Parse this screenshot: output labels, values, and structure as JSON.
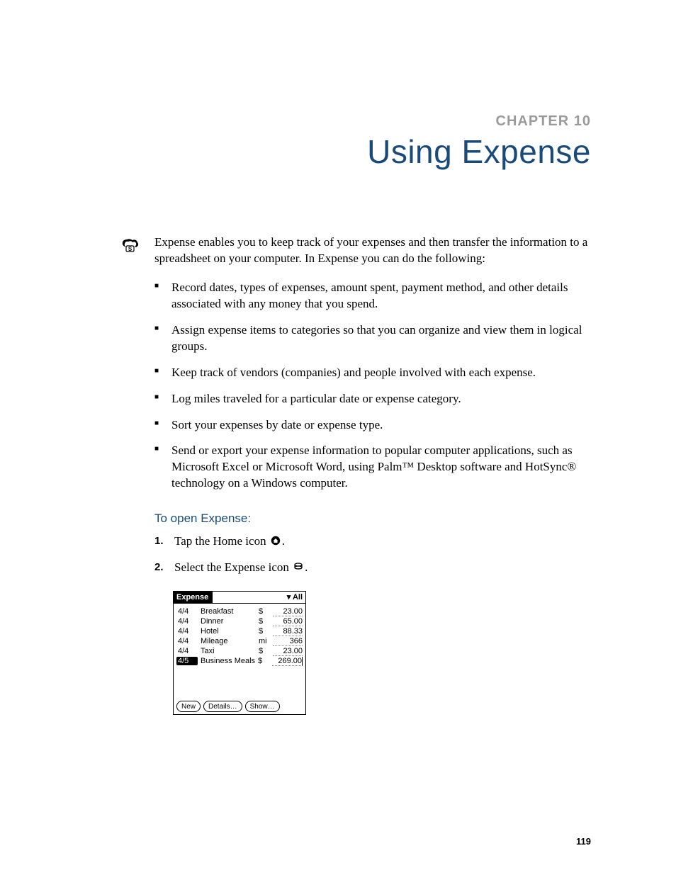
{
  "chapter": {
    "label": "CHAPTER 10",
    "title": "Using Expense",
    "label_color": "#9a9a9a",
    "title_color": "#1a4a7a"
  },
  "intro": "Expense enables you to keep track of your expenses and then transfer the information to a spreadsheet on your computer. In Expense you can do the following:",
  "bullets": [
    "Record dates, types of expenses, amount spent, payment method, and other details associated with any money that you spend.",
    "Assign expense items to categories so that you can organize and view them in logical groups.",
    "Keep track of vendors (companies) and people involved with each expense.",
    "Log miles traveled for a particular date or expense category.",
    "Sort your expenses by date or expense type.",
    "Send or export your expense information to popular computer applications, such as Microsoft Excel or Microsoft Word, using Palm™ Desktop software and HotSync® technology on a Windows computer."
  ],
  "subhead": "To open Expense:",
  "steps": [
    {
      "pre": "Tap the Home icon ",
      "post": "."
    },
    {
      "pre": "Select the Expense icon ",
      "post": "."
    }
  ],
  "screenshot": {
    "title": "Expense",
    "dropdown": "All",
    "rows": [
      {
        "date": "4/4",
        "desc": "Breakfast",
        "unit": "$",
        "amount": "23.00",
        "highlight": false
      },
      {
        "date": "4/4",
        "desc": "Dinner",
        "unit": "$",
        "amount": "65.00",
        "highlight": false
      },
      {
        "date": "4/4",
        "desc": "Hotel",
        "unit": "$",
        "amount": "88.33",
        "highlight": false
      },
      {
        "date": "4/4",
        "desc": "Mileage",
        "unit": "mi",
        "amount": "366",
        "highlight": false
      },
      {
        "date": "4/4",
        "desc": "Taxi",
        "unit": "$",
        "amount": "23.00",
        "highlight": false
      },
      {
        "date": "4/5",
        "desc": "Business Meals",
        "unit": "$",
        "amount": "269.00",
        "highlight": true
      }
    ],
    "buttons": [
      "New",
      "Details…",
      "Show…"
    ]
  },
  "page_number": "119",
  "colors": {
    "text": "#000000",
    "accent": "#1a4a7a",
    "muted": "#9a9a9a",
    "background": "#ffffff"
  },
  "typography": {
    "body_family": "Palatino, Georgia, serif",
    "body_size_pt": 12,
    "heading_family": "Arial Narrow, sans-serif",
    "chapter_title_size_pt": 34,
    "chapter_label_size_pt": 15
  }
}
